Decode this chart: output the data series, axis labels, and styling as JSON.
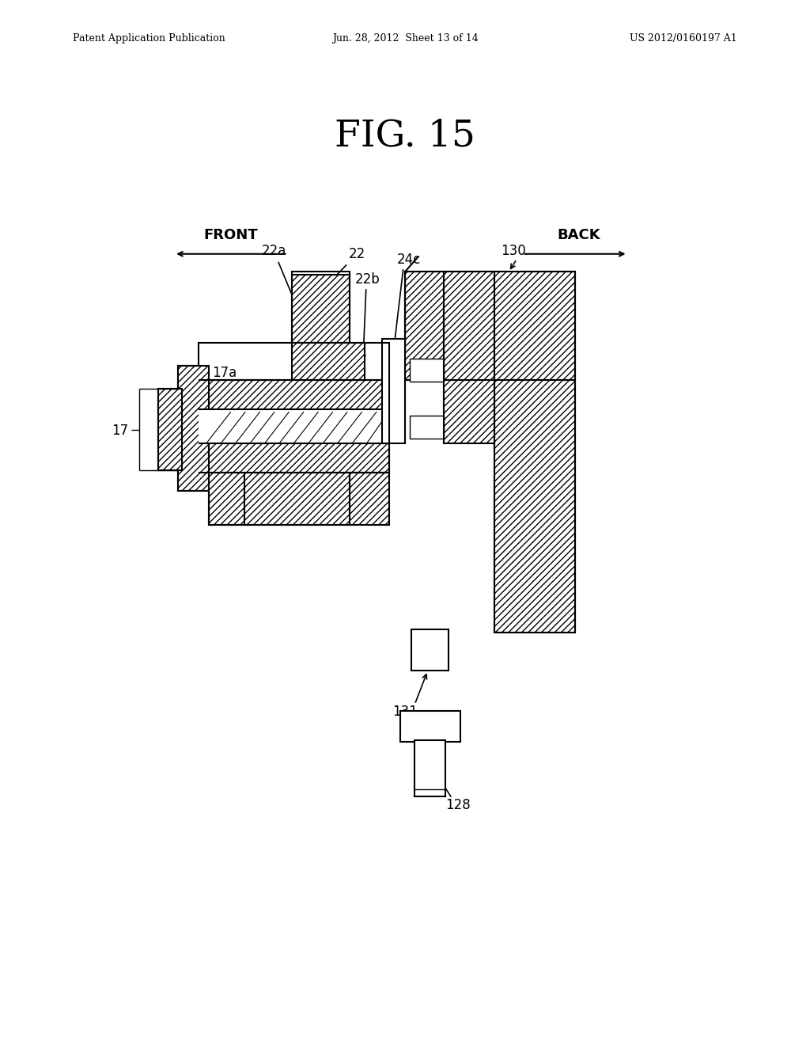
{
  "bg_color": "#ffffff",
  "line_color": "#000000",
  "header_left": "Patent Application Publication",
  "header_center": "Jun. 28, 2012  Sheet 13 of 14",
  "header_right": "US 2012/0160197 A1",
  "fig_title": "FIG. 15"
}
